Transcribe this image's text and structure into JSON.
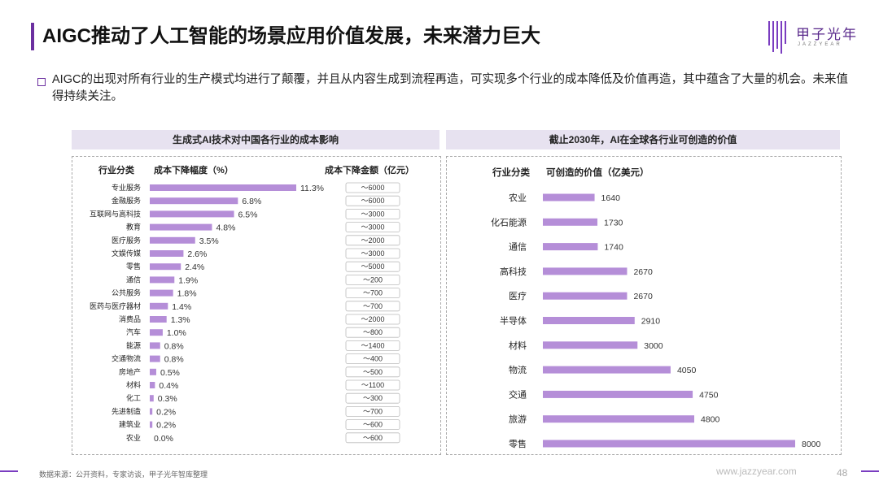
{
  "title": "AIGC推动了人工智能的场景应用价值发展，未来潜力巨大",
  "logo": {
    "name": "甲子光年",
    "sub": "JAZZYEAR"
  },
  "intro": "AIGC的出现对所有行业的生产模式均进行了颠覆，并且从内容生成到流程再造，可实现多个行业的成本降低及价值再造，其中蕴含了大量的机会。未来值得持续关注。",
  "footer": {
    "source": "数据来源：公开资料，专家访谈，甲子光年智库整理",
    "website": "www.jazzyear.com",
    "page": "48"
  },
  "colors": {
    "accent": "#6b2fa0",
    "bar": "#b58ed8",
    "header_bg": "#e7e2f0"
  },
  "chart_data": [
    {
      "type": "bar",
      "title": "生成式AI技术对中国各行业的成本影响",
      "col_category": "行业分类",
      "col_value": "成本下降幅度（%）",
      "col_amount": "成本下降金额（亿元）",
      "categories": [
        "专业服务",
        "金融服务",
        "互联网与高科技",
        "教育",
        "医疗服务",
        "文娱传媒",
        "零售",
        "通信",
        "公共服务",
        "医药与医疗器材",
        "消费品",
        "汽车",
        "能源",
        "交通物流",
        "房地产",
        "材料",
        "化工",
        "先进制造",
        "建筑业",
        "农业"
      ],
      "values": [
        11.3,
        6.8,
        6.5,
        4.8,
        3.5,
        2.6,
        2.4,
        1.9,
        1.8,
        1.4,
        1.3,
        1.0,
        0.8,
        0.8,
        0.5,
        0.4,
        0.3,
        0.2,
        0.2,
        0.0
      ],
      "value_labels": [
        "11.3%",
        "6.8%",
        "6.5%",
        "4.8%",
        "3.5%",
        "2.6%",
        "2.4%",
        "1.9%",
        "1.8%",
        "1.4%",
        "1.3%",
        "1.0%",
        "0.8%",
        "0.8%",
        "0.5%",
        "0.4%",
        "0.3%",
        "0.2%",
        "0.2%",
        "0.0%"
      ],
      "amounts": [
        "～6000",
        "～6000",
        "～3000",
        "～3000",
        "～2000",
        "～3000",
        "～5000",
        "～200",
        "～700",
        "～700",
        "～2000",
        "～800",
        "～1400",
        "～400",
        "～500",
        "～1100",
        "～300",
        "～700",
        "～600",
        "～600"
      ]
    },
    {
      "type": "bar",
      "title": "截止2030年，AI在全球各行业可创造的价值",
      "col_category": "行业分类",
      "col_value": "可创造的价值（亿美元）",
      "categories": [
        "农业",
        "化石能源",
        "通信",
        "高科技",
        "医疗",
        "半导体",
        "材料",
        "物流",
        "交通",
        "旅游",
        "零售"
      ],
      "values": [
        1640,
        1730,
        1740,
        2670,
        2670,
        2910,
        3000,
        4050,
        4750,
        4800,
        8000
      ],
      "value_labels": [
        "1640",
        "1730",
        "1740",
        "2670",
        "2670",
        "2910",
        "3000",
        "4050",
        "4750",
        "4800",
        "8000"
      ]
    }
  ]
}
